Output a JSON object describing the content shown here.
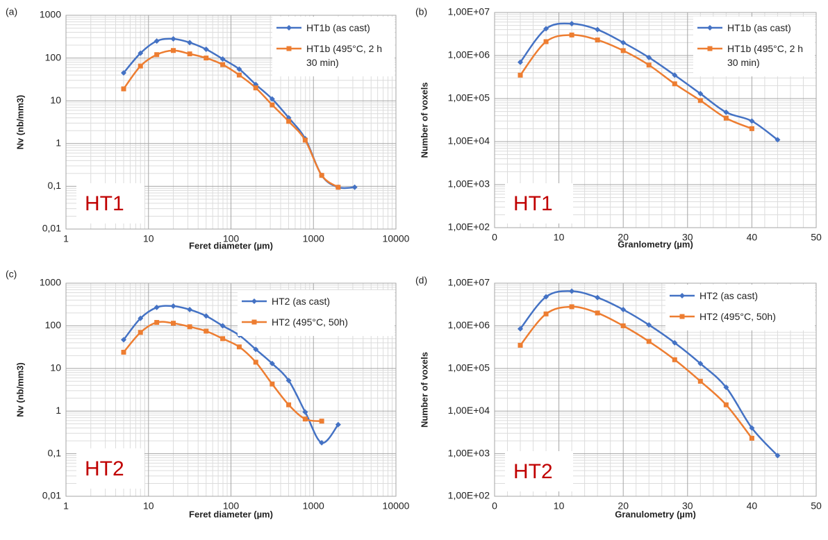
{
  "chart_data": [
    {
      "type": "line",
      "panel_label": "(a)",
      "annotation": "HT1",
      "xlabel": "Feret diameter (µm)",
      "ylabel": "Nv (nb/mm3)",
      "xlog": true,
      "ylog": true,
      "grid": true,
      "legend": "upper right",
      "xlim": [
        1,
        10000
      ],
      "xticks": [
        1,
        10,
        100,
        1000,
        10000
      ],
      "ylim": [
        0.01,
        1000
      ],
      "yticks": [
        {
          "value": 0.01,
          "label": "0,01"
        },
        {
          "value": 0.1,
          "label": "0,1"
        },
        1,
        10,
        100,
        1000
      ],
      "series": [
        {
          "name": "HT1b (as cast)",
          "color": "#4472c4",
          "marker": "diamond",
          "x": [
            5,
            8,
            12.6,
            20,
            31.6,
            50,
            79.4,
            126,
            200,
            316,
            501,
            794,
            1259,
            1995,
            3162
          ],
          "values": [
            45,
            130,
            250,
            280,
            230,
            160,
            95,
            55,
            24,
            11,
            4,
            1.3,
            0.18,
            0.095,
            0.095
          ]
        },
        {
          "name": "HT1b (495°C, 2 h 30 min)",
          "color": "#ed7d31",
          "marker": "square",
          "x": [
            5,
            8,
            12.6,
            20,
            31.6,
            50,
            79.4,
            126,
            200,
            316,
            501,
            794,
            1259,
            1995
          ],
          "values": [
            19,
            65,
            120,
            150,
            125,
            100,
            70,
            40,
            20,
            8,
            3.3,
            1.2,
            0.18,
            0.095
          ]
        }
      ]
    },
    {
      "type": "line",
      "panel_label": "(b)",
      "annotation": "HT1",
      "xlabel": "Granlometry (µm)",
      "ylabel": "Number of voxels",
      "xlog": false,
      "ylog": true,
      "grid": true,
      "legend": "upper right",
      "xlim": [
        0,
        50
      ],
      "xticks": [
        0,
        10,
        20,
        30,
        40,
        50
      ],
      "ylim": [
        100,
        10000000
      ],
      "yticks": [
        {
          "value": 100,
          "label": "1,00E+02"
        },
        {
          "value": 1000,
          "label": "1,00E+03"
        },
        {
          "value": 10000,
          "label": "1,00E+04"
        },
        {
          "value": 100000,
          "label": "1,00E+05"
        },
        {
          "value": 1000000,
          "label": "1,00E+06"
        },
        {
          "value": 10000000,
          "label": "1,00E+07"
        }
      ],
      "series": [
        {
          "name": "HT1b (as cast)",
          "color": "#4472c4",
          "marker": "diamond",
          "x": [
            4,
            8,
            12,
            16,
            20,
            24,
            28,
            32,
            36,
            40,
            44
          ],
          "values": [
            700000,
            4200000,
            5500000,
            4000000,
            2000000,
            900000,
            350000,
            130000,
            48000,
            30000,
            11000
          ]
        },
        {
          "name": "HT1b (495°C, 2 h 30 min)",
          "color": "#ed7d31",
          "marker": "square",
          "x": [
            4,
            8,
            12,
            16,
            20,
            24,
            28,
            32,
            36,
            40
          ],
          "values": [
            350000,
            2100000,
            3000000,
            2300000,
            1300000,
            600000,
            220000,
            90000,
            35000,
            20000
          ]
        }
      ]
    },
    {
      "type": "line",
      "panel_label": "(c)",
      "annotation": "HT2",
      "xlabel": "Feret diameter (µm)",
      "ylabel": "Nv (nb/mm3)",
      "xlog": true,
      "ylog": true,
      "grid": true,
      "legend": "upper right",
      "xlim": [
        1,
        10000
      ],
      "xticks": [
        1,
        10,
        100,
        1000,
        10000
      ],
      "ylim": [
        0.01,
        1000
      ],
      "yticks": [
        {
          "value": 0.01,
          "label": "0,01"
        },
        {
          "value": 0.1,
          "label": "0,1"
        },
        1,
        10,
        100,
        1000
      ],
      "series": [
        {
          "name": "HT2 (as cast)",
          "color": "#4472c4",
          "marker": "diamond",
          "x": [
            5,
            8,
            12.6,
            20,
            31.6,
            50,
            79.4,
            126,
            200,
            316,
            501,
            794,
            1259,
            1995
          ],
          "values": [
            47,
            150,
            270,
            290,
            240,
            170,
            100,
            60,
            28,
            13,
            5.2,
            0.95,
            0.18,
            0.48
          ]
        },
        {
          "name": "HT2 (495°C, 50h)",
          "color": "#ed7d31",
          "marker": "square",
          "x": [
            5,
            8,
            12.6,
            20,
            31.6,
            50,
            79.4,
            126,
            200,
            316,
            501,
            794,
            1259
          ],
          "values": [
            24,
            70,
            120,
            115,
            95,
            75,
            50,
            32,
            14,
            4.3,
            1.4,
            0.65,
            0.58
          ]
        }
      ]
    },
    {
      "type": "line",
      "panel_label": "(d)",
      "annotation": "HT2",
      "xlabel": "Granulometry (µm)",
      "ylabel": "Number of voxels",
      "xlog": false,
      "ylog": true,
      "grid": true,
      "legend": "upper right",
      "xlim": [
        0,
        50
      ],
      "xticks": [
        0,
        10,
        20,
        30,
        40,
        50
      ],
      "ylim": [
        100,
        10000000
      ],
      "yticks": [
        {
          "value": 100,
          "label": "1,00E+02"
        },
        {
          "value": 1000,
          "label": "1,00E+03"
        },
        {
          "value": 10000,
          "label": "1,00E+04"
        },
        {
          "value": 100000,
          "label": "1,00E+05"
        },
        {
          "value": 1000000,
          "label": "1,00E+06"
        },
        {
          "value": 10000000,
          "label": "1,00E+07"
        }
      ],
      "series": [
        {
          "name": "HT2 (as cast)",
          "color": "#4472c4",
          "marker": "diamond",
          "x": [
            4,
            8,
            12,
            16,
            20,
            24,
            28,
            32,
            36,
            40,
            44
          ],
          "values": [
            850000,
            4800000,
            6500000,
            4600000,
            2400000,
            1050000,
            400000,
            130000,
            36000,
            4000,
            900
          ]
        },
        {
          "name": "HT2 (495°C, 50h)",
          "color": "#ed7d31",
          "marker": "square",
          "x": [
            4,
            8,
            12,
            16,
            20,
            24,
            28,
            32,
            36,
            40
          ],
          "values": [
            350000,
            1900000,
            2800000,
            2000000,
            1000000,
            430000,
            160000,
            50000,
            14000,
            2300
          ]
        }
      ]
    }
  ]
}
